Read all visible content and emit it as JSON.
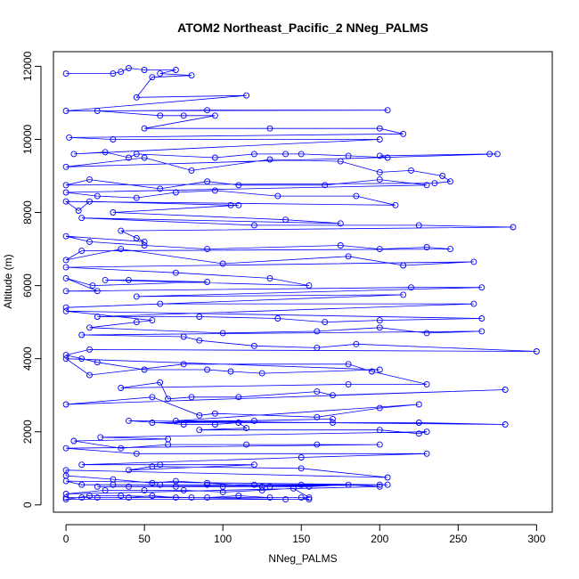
{
  "chart_data": {
    "type": "line",
    "title": "ATOM2 Northeast_Pacific_2 NNeg_PALMS",
    "xlabel": "NNeg_PALMS",
    "ylabel": "Altitude (m)",
    "xlim": [
      -8,
      310
    ],
    "ylim": [
      -200,
      12400
    ],
    "x_ticks": [
      0,
      50,
      100,
      150,
      200,
      250,
      300
    ],
    "y_ticks": [
      0,
      2000,
      4000,
      6000,
      8000,
      10000,
      12000
    ],
    "grid": false,
    "legend": "none",
    "series": [
      {
        "color": "#0000ff",
        "marker": "open-circle",
        "points": [
          [
            0,
            11800
          ],
          [
            30,
            11800
          ],
          [
            35,
            11850
          ],
          [
            40,
            11950
          ],
          [
            50,
            11900
          ],
          [
            70,
            11900
          ],
          [
            60,
            11800
          ],
          [
            80,
            11750
          ],
          [
            55,
            11700
          ],
          [
            45,
            11150
          ],
          [
            115,
            11200
          ],
          [
            0,
            10780
          ],
          [
            205,
            10800
          ],
          [
            90,
            10800
          ],
          [
            20,
            10780
          ],
          [
            60,
            10650
          ],
          [
            75,
            10650
          ],
          [
            95,
            10650
          ],
          [
            50,
            10300
          ],
          [
            130,
            10300
          ],
          [
            200,
            10300
          ],
          [
            215,
            10150
          ],
          [
            2,
            10050
          ],
          [
            30,
            10000
          ],
          [
            200,
            10000
          ],
          [
            5,
            9600
          ],
          [
            25,
            9650
          ],
          [
            40,
            9500
          ],
          [
            45,
            9600
          ],
          [
            95,
            9500
          ],
          [
            120,
            9600
          ],
          [
            140,
            9600
          ],
          [
            150,
            9600
          ],
          [
            180,
            9550
          ],
          [
            205,
            9500
          ],
          [
            200,
            9550
          ],
          [
            270,
            9600
          ],
          [
            275,
            9600
          ],
          [
            0,
            9250
          ],
          [
            50,
            9500
          ],
          [
            80,
            9150
          ],
          [
            130,
            9450
          ],
          [
            175,
            9400
          ],
          [
            200,
            9100
          ],
          [
            220,
            9150
          ],
          [
            240,
            9000
          ],
          [
            245,
            8850
          ],
          [
            235,
            8800
          ],
          [
            0,
            8750
          ],
          [
            15,
            8900
          ],
          [
            60,
            8650
          ],
          [
            90,
            8850
          ],
          [
            110,
            8750
          ],
          [
            165,
            8750
          ],
          [
            200,
            8900
          ],
          [
            230,
            8750
          ],
          [
            0,
            8550
          ],
          [
            20,
            8450
          ],
          [
            45,
            8400
          ],
          [
            70,
            8550
          ],
          [
            95,
            8600
          ],
          [
            135,
            8450
          ],
          [
            185,
            8450
          ],
          [
            210,
            8200
          ],
          [
            0,
            8300
          ],
          [
            8,
            8050
          ],
          [
            15,
            8300
          ],
          [
            105,
            8200
          ],
          [
            110,
            8200
          ],
          [
            30,
            8000
          ],
          [
            140,
            7800
          ],
          [
            175,
            7700
          ],
          [
            10,
            7850
          ],
          [
            120,
            7650
          ],
          [
            225,
            7650
          ],
          [
            285,
            7600
          ],
          [
            35,
            7500
          ],
          [
            45,
            7300
          ],
          [
            50,
            7200
          ],
          [
            0,
            7350
          ],
          [
            15,
            7200
          ],
          [
            50,
            7100
          ],
          [
            90,
            7000
          ],
          [
            175,
            7100
          ],
          [
            200,
            7000
          ],
          [
            230,
            7050
          ],
          [
            245,
            7000
          ],
          [
            10,
            6950
          ],
          [
            0,
            6700
          ],
          [
            35,
            7000
          ],
          [
            100,
            6600
          ],
          [
            180,
            6800
          ],
          [
            215,
            6550
          ],
          [
            260,
            6650
          ],
          [
            0,
            6500
          ],
          [
            70,
            6350
          ],
          [
            130,
            6200
          ],
          [
            155,
            6000
          ],
          [
            25,
            6150
          ],
          [
            40,
            6150
          ],
          [
            90,
            6100
          ],
          [
            17,
            6000
          ],
          [
            0,
            6200
          ],
          [
            20,
            5850
          ],
          [
            0,
            5850
          ],
          [
            220,
            5950
          ],
          [
            265,
            5950
          ],
          [
            45,
            5700
          ],
          [
            215,
            5750
          ],
          [
            0,
            5400
          ],
          [
            60,
            5500
          ],
          [
            260,
            5500
          ],
          [
            20,
            5150
          ],
          [
            85,
            5150
          ],
          [
            135,
            5100
          ],
          [
            165,
            5000
          ],
          [
            200,
            5050
          ],
          [
            265,
            5100
          ],
          [
            0,
            5300
          ],
          [
            55,
            5050
          ],
          [
            45,
            5000
          ],
          [
            15,
            4850
          ],
          [
            100,
            4700
          ],
          [
            160,
            4750
          ],
          [
            200,
            4850
          ],
          [
            230,
            4700
          ],
          [
            265,
            4750
          ],
          [
            10,
            4650
          ],
          [
            75,
            4600
          ],
          [
            85,
            4500
          ],
          [
            120,
            4350
          ],
          [
            160,
            4300
          ],
          [
            185,
            4400
          ],
          [
            300,
            4200
          ],
          [
            15,
            4250
          ],
          [
            0,
            4100
          ],
          [
            10,
            4000
          ],
          [
            20,
            3900
          ],
          [
            50,
            3700
          ],
          [
            90,
            3700
          ],
          [
            105,
            3650
          ],
          [
            125,
            3600
          ],
          [
            200,
            3700
          ],
          [
            0,
            4000
          ],
          [
            15,
            3550
          ],
          [
            75,
            3850
          ],
          [
            180,
            3850
          ],
          [
            195,
            3650
          ],
          [
            230,
            3300
          ],
          [
            180,
            3300
          ],
          [
            35,
            3200
          ],
          [
            60,
            3350
          ],
          [
            65,
            2900
          ],
          [
            80,
            2950
          ],
          [
            110,
            2950
          ],
          [
            160,
            3100
          ],
          [
            170,
            3000
          ],
          [
            280,
            3150
          ],
          [
            0,
            2750
          ],
          [
            55,
            2950
          ],
          [
            85,
            2450
          ],
          [
            95,
            2500
          ],
          [
            160,
            2400
          ],
          [
            200,
            2650
          ],
          [
            225,
            2750
          ],
          [
            70,
            2300
          ],
          [
            120,
            2300
          ],
          [
            170,
            2350
          ],
          [
            55,
            2250
          ],
          [
            170,
            2250
          ],
          [
            225,
            2250
          ],
          [
            280,
            2200
          ],
          [
            40,
            2300
          ],
          [
            75,
            2200
          ],
          [
            95,
            2200
          ],
          [
            110,
            2250
          ],
          [
            115,
            2100
          ],
          [
            85,
            2050
          ],
          [
            200,
            2050
          ],
          [
            225,
            1950
          ],
          [
            230,
            2000
          ],
          [
            22,
            1850
          ],
          [
            65,
            1800
          ],
          [
            5,
            1750
          ],
          [
            35,
            1550
          ],
          [
            65,
            1650
          ],
          [
            115,
            1650
          ],
          [
            160,
            1650
          ],
          [
            200,
            1650
          ],
          [
            0,
            1550
          ],
          [
            45,
            1400
          ],
          [
            230,
            1400
          ],
          [
            150,
            1300
          ],
          [
            10,
            1100
          ],
          [
            60,
            1100
          ],
          [
            120,
            1100
          ],
          [
            40,
            950
          ],
          [
            55,
            1050
          ],
          [
            150,
            1000
          ],
          [
            205,
            750
          ],
          [
            0,
            950
          ],
          [
            0,
            800
          ],
          [
            30,
            700
          ],
          [
            55,
            600
          ],
          [
            70,
            650
          ],
          [
            90,
            600
          ],
          [
            125,
            500
          ],
          [
            200,
            550
          ],
          [
            0,
            650
          ],
          [
            10,
            550
          ],
          [
            30,
            550
          ],
          [
            60,
            550
          ],
          [
            90,
            550
          ],
          [
            120,
            550
          ],
          [
            150,
            550
          ],
          [
            205,
            550
          ],
          [
            20,
            500
          ],
          [
            40,
            500
          ],
          [
            70,
            500
          ],
          [
            100,
            500
          ],
          [
            130,
            500
          ],
          [
            155,
            500
          ],
          [
            180,
            550
          ],
          [
            200,
            500
          ],
          [
            0,
            300
          ],
          [
            25,
            400
          ],
          [
            50,
            400
          ],
          [
            75,
            400
          ],
          [
            100,
            350
          ],
          [
            125,
            400
          ],
          [
            145,
            450
          ],
          [
            155,
            200
          ],
          [
            0,
            200
          ],
          [
            10,
            200
          ],
          [
            20,
            200
          ],
          [
            40,
            200
          ],
          [
            55,
            250
          ],
          [
            70,
            200
          ],
          [
            90,
            200
          ],
          [
            110,
            250
          ],
          [
            130,
            200
          ],
          [
            150,
            200
          ],
          [
            155,
            150
          ],
          [
            0,
            150
          ],
          [
            15,
            250
          ],
          [
            35,
            250
          ],
          [
            80,
            200
          ],
          [
            140,
            150
          ]
        ]
      }
    ]
  }
}
